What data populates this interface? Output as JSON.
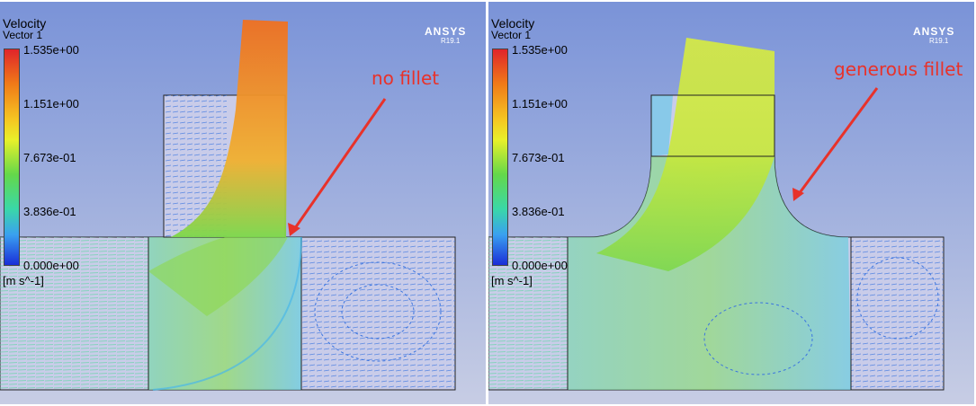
{
  "panels": [
    {
      "legend": {
        "title": "Velocity",
        "subtitle": "Vector 1",
        "ticks": [
          "1.535e+00",
          "1.151e+00",
          "7.673e-01",
          "3.836e-01",
          "0.000e+00"
        ],
        "units": "[m s^-1]"
      },
      "brand": "ANSYS",
      "version": "R19.1",
      "annotation": "no fillet"
    },
    {
      "legend": {
        "title": "Velocity",
        "subtitle": "Vector 1",
        "ticks": [
          "1.535e+00",
          "1.151e+00",
          "7.673e-01",
          "3.836e-01",
          "0.000e+00"
        ],
        "units": "[m s^-1]"
      },
      "brand": "ANSYS",
      "version": "R19.1",
      "annotation": "generous fillet"
    }
  ],
  "colors": {
    "annotation": "#e8322a",
    "background_top": "#7a93d8",
    "background_bottom": "#c7cde4"
  }
}
